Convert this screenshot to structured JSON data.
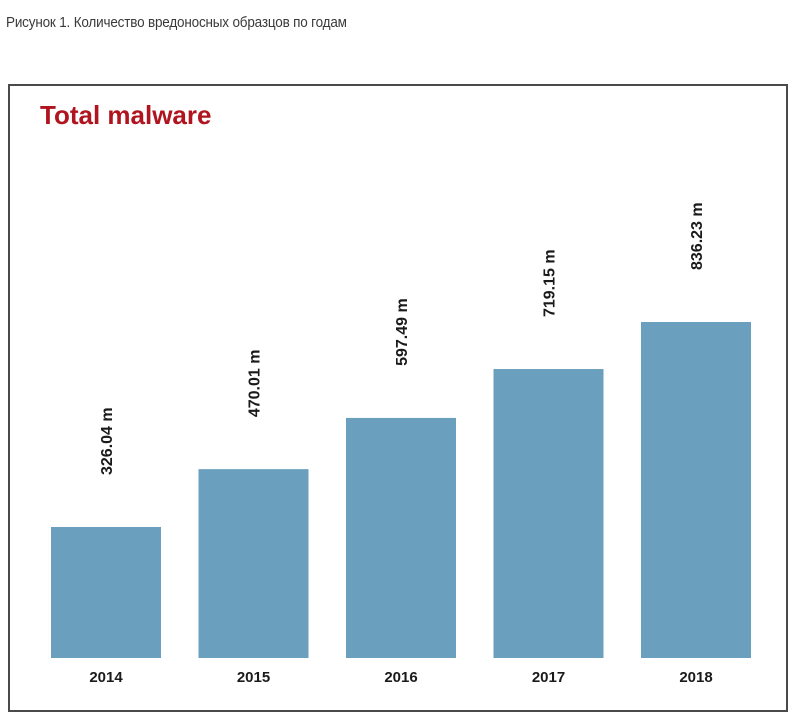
{
  "caption": "Рисунок 1. Количество вредоносных образцов по годам",
  "chart_data": {
    "type": "bar",
    "title": "Total malware",
    "categories": [
      "2014",
      "2015",
      "2016",
      "2017",
      "2018"
    ],
    "values": [
      326.04,
      470.01,
      597.49,
      719.15,
      836.23
    ],
    "value_labels": [
      "326.04 m",
      "470.01 m",
      "597.49 m",
      "719.15 m",
      "836.23 m"
    ],
    "unit": "m",
    "xlabel": "",
    "ylabel": "",
    "grid": false,
    "legend": "none",
    "bar_color": "#6a9fbd",
    "title_color": "#b0141e"
  }
}
